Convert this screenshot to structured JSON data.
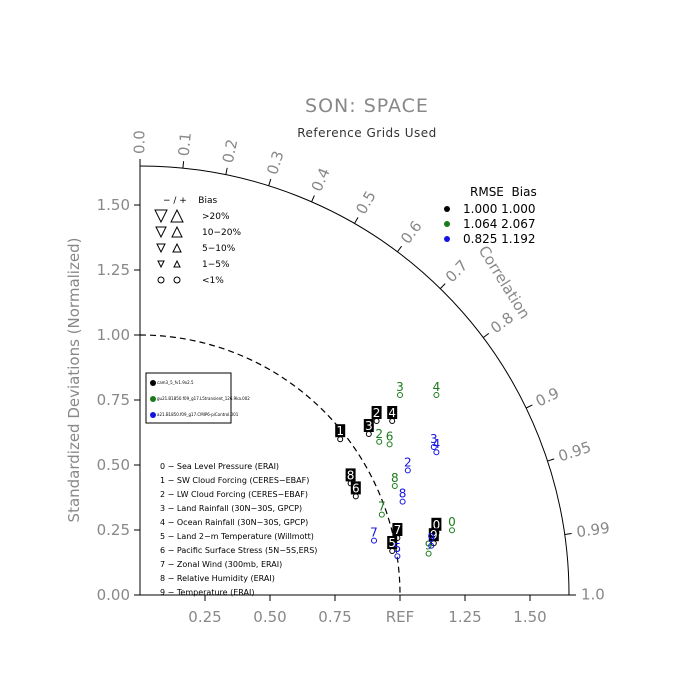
{
  "title": "SON: SPACE",
  "subtitle": "Reference Grids Used",
  "y_axis_title": "Standardized Deviations (Normalized)",
  "x_ticks": [
    "0.25",
    "0.50",
    "0.75",
    "REF",
    "1.25",
    "1.50"
  ],
  "y_ticks": [
    "0.00",
    "0.25",
    "0.50",
    "0.75",
    "1.00",
    "1.25",
    "1.50"
  ],
  "correlation_label": "Correlation",
  "correlation_ticks": [
    "0.0",
    "0.1",
    "0.2",
    "0.3",
    "0.4",
    "0.5",
    "0.6",
    "0.7",
    "0.8",
    "0.9",
    "0.95",
    "0.99",
    "1.0"
  ],
  "bias_legend": {
    "header": "− / +    Bias",
    "rows": [
      ">20%",
      "10−20%",
      "5−10%",
      "1−5%",
      "<1%"
    ]
  },
  "rmse_legend": {
    "header": "RMSE  Bias",
    "rows": [
      {
        "values": "1.000 1.000",
        "color": "#000000"
      },
      {
        "values": "1.064 2.067",
        "color": "#1a7a1a"
      },
      {
        "values": "0.825 1.192",
        "color": "#1414e0"
      }
    ]
  },
  "case_legend": [
    {
      "label": "cam3_5_fv1.9x2.5",
      "color": "#000000"
    },
    {
      "label": "gu21.B1850.f09_g17.L5transient_126.9ka.002",
      "color": "#1a7a1a"
    },
    {
      "label": "a21.B1850.f09_g17.CMIP6-piControl.001",
      "color": "#1414e0"
    }
  ],
  "variables": [
    "0 − Sea Level Pressure (ERAI)",
    "1 − SW Cloud Forcing (CERES−EBAF)",
    "2 − LW Cloud Forcing (CERES−EBAF)",
    "3 − Land Rainfall (30N−30S, GPCP)",
    "4 − Ocean Rainfall (30N−30S, GPCP)",
    "5 − Land 2−m Temperature (Willmott)",
    "6 − Pacific Surface Stress (5N−5S,ERS)",
    "7 − Zonal Wind (300mb, ERAI)",
    "8 − Relative Humidity (ERAI)",
    "9 − Temperature (ERAI)"
  ],
  "chart_data": {
    "type": "scatter",
    "subtype": "taylor_diagram",
    "title": "SON: SPACE",
    "subtitle": "Reference Grids Used",
    "ylabel": "Standardized Deviations (Normalized)",
    "xlim": [
      0,
      1.65
    ],
    "ylim": [
      0,
      1.65
    ],
    "series": [
      {
        "name": "cam3_5_fv1.9x2.5",
        "color": "#000000",
        "points": [
          {
            "id": "0",
            "x": 1.14,
            "y": 0.27
          },
          {
            "id": "1",
            "x": 0.77,
            "y": 0.63
          },
          {
            "id": "2",
            "x": 0.91,
            "y": 0.7
          },
          {
            "id": "3",
            "x": 0.88,
            "y": 0.65
          },
          {
            "id": "4",
            "x": 0.97,
            "y": 0.7
          },
          {
            "id": "5",
            "x": 0.97,
            "y": 0.2
          },
          {
            "id": "6",
            "x": 0.83,
            "y": 0.41
          },
          {
            "id": "7",
            "x": 0.99,
            "y": 0.25
          },
          {
            "id": "8",
            "x": 0.81,
            "y": 0.46
          },
          {
            "id": "9",
            "x": 1.13,
            "y": 0.23
          }
        ]
      },
      {
        "name": "gu21.B1850.f09_g17.L5transient_126.9ka.002",
        "color": "#1a7a1a",
        "points": [
          {
            "id": "0",
            "x": 1.2,
            "y": 0.28
          },
          {
            "id": "2",
            "x": 0.92,
            "y": 0.62
          },
          {
            "id": "3",
            "x": 1.0,
            "y": 0.8
          },
          {
            "id": "4",
            "x": 1.14,
            "y": 0.8
          },
          {
            "id": "6",
            "x": 0.96,
            "y": 0.61
          },
          {
            "id": "7",
            "x": 0.93,
            "y": 0.34
          },
          {
            "id": "8",
            "x": 0.98,
            "y": 0.45
          },
          {
            "id": "9",
            "x": 1.11,
            "y": 0.19
          }
        ]
      },
      {
        "name": "a21.B1850.f09_g17.CMIP6-piControl.001",
        "color": "#1414e0",
        "points": [
          {
            "id": "2",
            "x": 1.03,
            "y": 0.51
          },
          {
            "id": "3",
            "x": 1.13,
            "y": 0.6
          },
          {
            "id": "4",
            "x": 1.14,
            "y": 0.58
          },
          {
            "id": "5",
            "x": 0.99,
            "y": 0.18
          },
          {
            "id": "7",
            "x": 0.9,
            "y": 0.24
          },
          {
            "id": "8",
            "x": 1.01,
            "y": 0.39
          },
          {
            "id": "9",
            "x": 1.12,
            "y": 0.22
          }
        ]
      }
    ]
  }
}
